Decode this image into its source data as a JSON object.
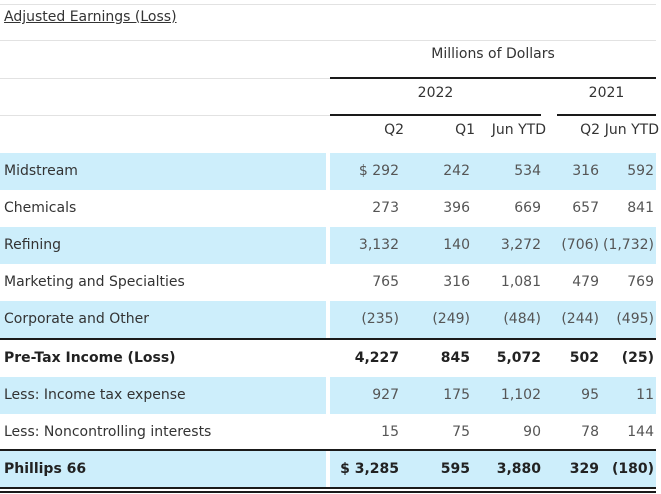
{
  "title": "Adjusted Earnings (Loss)",
  "units_header": "Millions of Dollars",
  "years": [
    "2022",
    "2021"
  ],
  "columns": [
    "Q2",
    "Q1",
    "Jun YTD",
    "Q2",
    "Jun YTD"
  ],
  "rows": [
    {
      "label": "Midstream",
      "values": [
        "$ 292",
        "242",
        "534",
        "316",
        "592"
      ]
    },
    {
      "label": "Chemicals",
      "values": [
        "273",
        "396",
        "669",
        "657",
        "841"
      ]
    },
    {
      "label": "Refining",
      "values": [
        "3,132",
        "140",
        "3,272",
        "(706)",
        "(1,732)"
      ]
    },
    {
      "label": "Marketing and Specialties",
      "values": [
        "765",
        "316",
        "1,081",
        "479",
        "769"
      ]
    },
    {
      "label": "Corporate and Other",
      "values": [
        "(235)",
        "(249)",
        "(484)",
        "(244)",
        "(495)"
      ]
    },
    {
      "label": "Pre-Tax Income (Loss)",
      "values": [
        "4,227",
        "845",
        "5,072",
        "502",
        "(25)"
      ]
    },
    {
      "label": "Less: Income tax expense",
      "values": [
        "927",
        "175",
        "1,102",
        "95",
        "11"
      ]
    },
    {
      "label": "Less: Noncontrolling interests",
      "values": [
        "15",
        "75",
        "90",
        "78",
        "144"
      ]
    },
    {
      "label": "Phillips 66",
      "values": [
        "$ 3,285",
        "595",
        "3,880",
        "329",
        "(180)"
      ]
    }
  ]
}
